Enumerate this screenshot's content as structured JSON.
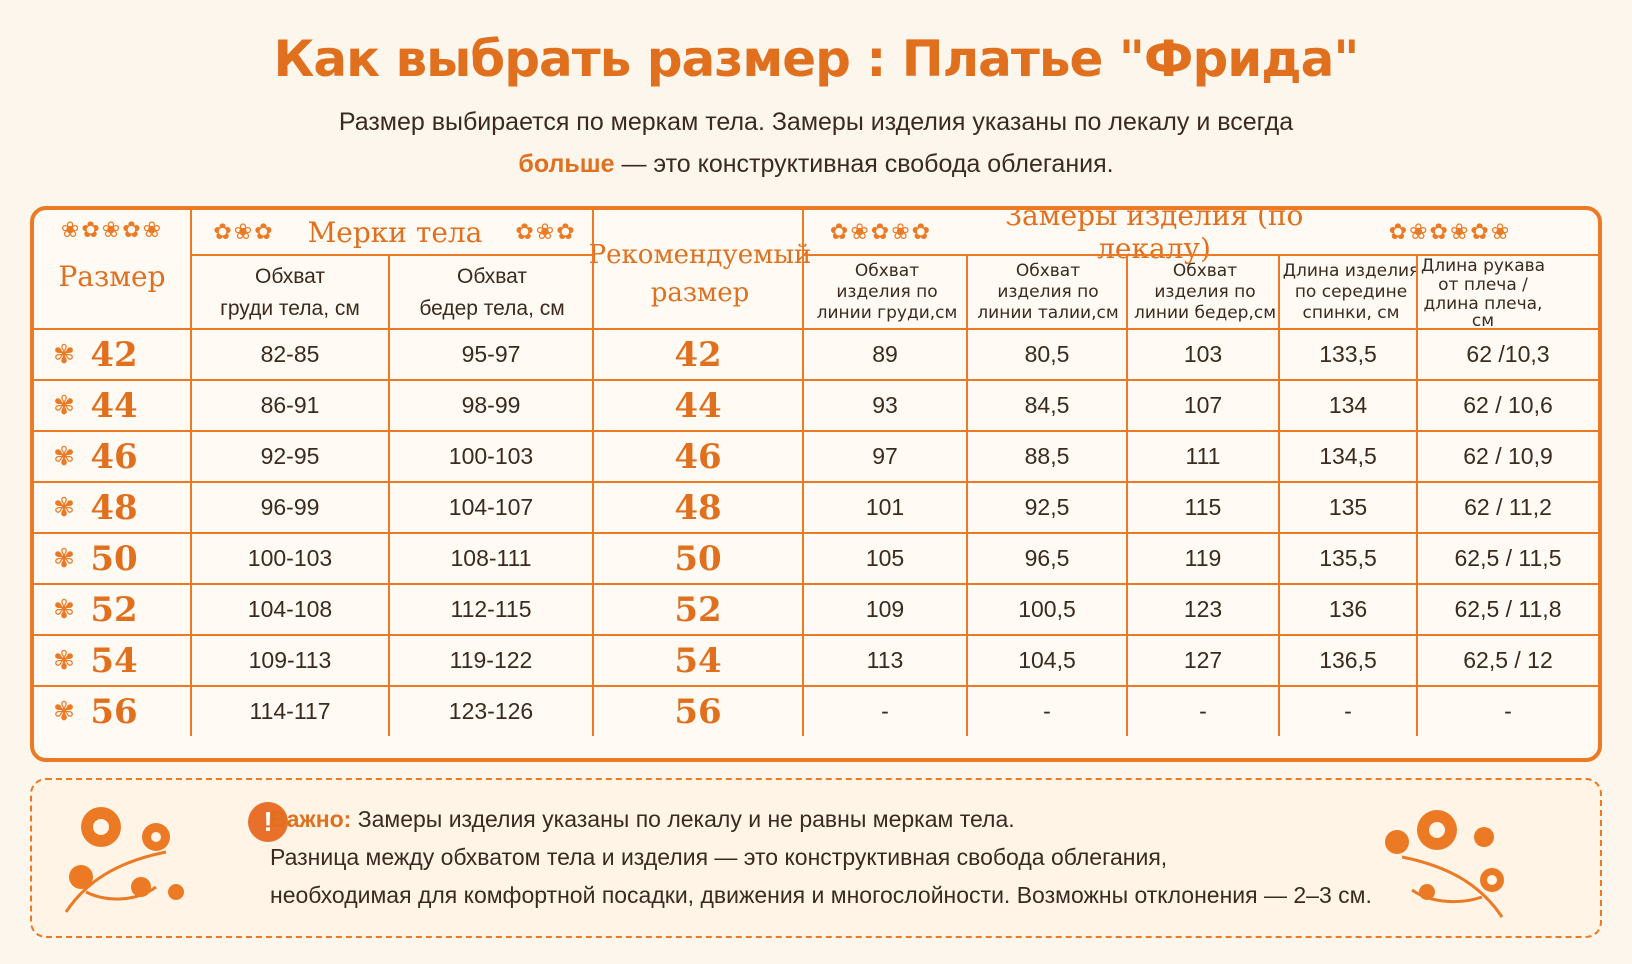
{
  "header": {
    "title": "Как выбрать размер :  Платье \"Фрида\"",
    "subtitle_line1": "Размер выбирается по меркам тела. Замеры изделия указаны по лекалу и всегда",
    "subtitle_accent": "больше",
    "subtitle_line2_rest": " — это конструктивная свобода облегания."
  },
  "table": {
    "col_size": "Размер",
    "group_body": "Мерки тела",
    "body_chest": [
      "Обхват",
      "груди тела, см"
    ],
    "body_hips": [
      "Обхват",
      "бедер тела, см"
    ],
    "col_recommended": [
      "Рекомендуемый",
      "размер"
    ],
    "group_product": "Замеры изделия (по лекалу)",
    "prod_chest": [
      "Обхват",
      "изделия по",
      "линии груди,см"
    ],
    "prod_waist": [
      "Обхват",
      "изделия по",
      "линии талии,см"
    ],
    "prod_hips": [
      "Обхват",
      "изделия по",
      "линии бедер,см"
    ],
    "prod_length": [
      "Длина изделия",
      "по середине",
      "спинки, см"
    ],
    "prod_sleeve": [
      "Длина рукава",
      "от плеча /",
      "длина плеча,",
      "см"
    ],
    "rows": [
      {
        "size": "42",
        "chest": "82-85",
        "hips": "95-97",
        "rec": "42",
        "p_chest": "89",
        "p_waist": "80,5",
        "p_hips": "103",
        "p_len": "133,5",
        "p_sleeve": "62 /10,3"
      },
      {
        "size": "44",
        "chest": "86-91",
        "hips": "98-99",
        "rec": "44",
        "p_chest": "93",
        "p_waist": "84,5",
        "p_hips": "107",
        "p_len": "134",
        "p_sleeve": "62 / 10,6"
      },
      {
        "size": "46",
        "chest": "92-95",
        "hips": "100-103",
        "rec": "46",
        "p_chest": "97",
        "p_waist": "88,5",
        "p_hips": "111",
        "p_len": "134,5",
        "p_sleeve": "62 / 10,9"
      },
      {
        "size": "48",
        "chest": "96-99",
        "hips": "104-107",
        "rec": "48",
        "p_chest": "101",
        "p_waist": "92,5",
        "p_hips": "115",
        "p_len": "135",
        "p_sleeve": "62 / 11,2"
      },
      {
        "size": "50",
        "chest": "100-103",
        "hips": "108-111",
        "rec": "50",
        "p_chest": "105",
        "p_waist": "96,5",
        "p_hips": "119",
        "p_len": "135,5",
        "p_sleeve": "62,5 / 11,5"
      },
      {
        "size": "52",
        "chest": "104-108",
        "hips": "112-115",
        "rec": "52",
        "p_chest": "109",
        "p_waist": "100,5",
        "p_hips": "123",
        "p_len": "136",
        "p_sleeve": "62,5 / 11,8"
      },
      {
        "size": "54",
        "chest": "109-113",
        "hips": "119-122",
        "rec": "54",
        "p_chest": "113",
        "p_waist": "104,5",
        "p_hips": "127",
        "p_len": "136,5",
        "p_sleeve": "62,5 / 12"
      },
      {
        "size": "56",
        "chest": "114-117",
        "hips": "123-126",
        "rec": "56",
        "p_chest": "-",
        "p_waist": "-",
        "p_hips": "-",
        "p_len": "-",
        "p_sleeve": "-"
      }
    ]
  },
  "note": {
    "label": "Важно:",
    "line1": "  Замеры изделия указаны по лекалу и не равны меркам тела.",
    "line2": "Разница между обхватом тела и изделия — это конструктивная свобода облегания,",
    "line3": "необходимая для комфортной посадки, движения и многослойности. Возможны отклонения — 2–3 см.",
    "icon": "exclamation-icon"
  },
  "colors": {
    "accent": "#e0701e",
    "border": "#ec7a24",
    "background": "#fdf6ec",
    "text": "#3a2a20"
  }
}
